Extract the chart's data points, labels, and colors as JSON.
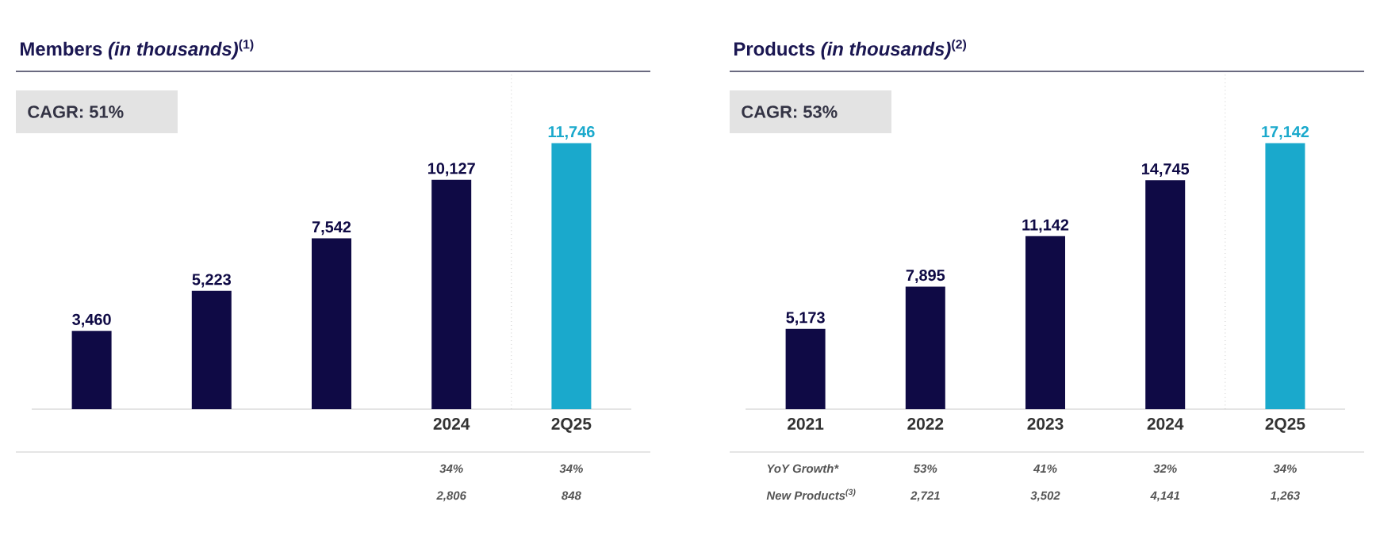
{
  "chart_data": [
    {
      "type": "bar",
      "title": "Members *(in thousands)*$^{(1)}$",
      "subtitle": "CAGR: 51%",
      "categories": [
        null,
        null,
        null,
        "2024",
        "2Q25"
      ],
      "values": [
        3460,
        5223,
        7542,
        10127,
        11746
      ],
      "value_labels": [
        "3,460",
        "5,223",
        "7,542",
        "10,127",
        "11,746"
      ],
      "colors": [
        "#0f0a45",
        "#0f0a45",
        "#0f0a45",
        "#0f0a45",
        "#1aa9cc"
      ],
      "annotations": [
        "34%",
        "34%",
        "2,806",
        "848"
      ]
    },
    {
      "type": "bar",
      "title": "Products *(in thousands)*$^{(2)}$",
      "subtitle": "CAGR: 53%",
      "categories": [
        "2021",
        "2022",
        "2023",
        "2024",
        "2Q25"
      ],
      "values": [
        5173,
        7895,
        11142,
        14745,
        17142
      ],
      "value_labels": [
        "5,173",
        "7,895",
        "11,142",
        "14,745",
        "17,142"
      ],
      "colors": [
        "#0f0a45",
        "#0f0a45",
        "#0f0a45",
        "#0f0a45",
        "#1aa9cc"
      ],
      "annotations": [
        "YoY Growth*",
        "53%",
        "41%",
        "32%",
        "34%",
        "New Products$^{(3)}$",
        "2,721",
        "3,502",
        "4,141",
        "1,263"
      ]
    }
  ]
}
